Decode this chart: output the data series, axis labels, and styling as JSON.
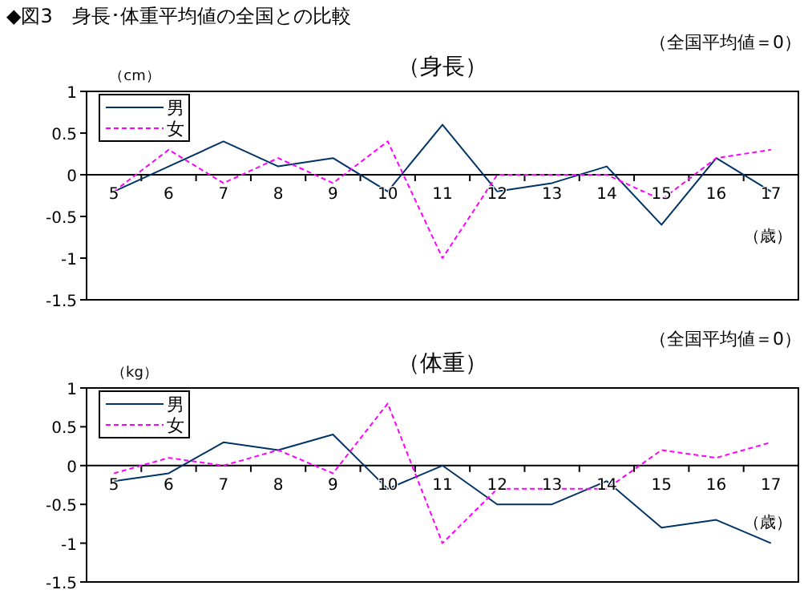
{
  "chart_data": [
    {
      "type": "line",
      "title": "（身長）",
      "subtitle": "（全国平均値＝0）",
      "ylabel": "（cm）",
      "xlabel": "（歳）",
      "annotations": [
        "◆図3　身長･体重平均値の全国との比較"
      ],
      "categories": [
        "5",
        "6",
        "7",
        "8",
        "9",
        "10",
        "11",
        "12",
        "13",
        "14",
        "15",
        "16",
        "17"
      ],
      "series": [
        {
          "name": "男",
          "color": "#003366",
          "line_style": "solid",
          "values": [
            -0.2,
            0.1,
            0.4,
            0.1,
            0.2,
            -0.2,
            0.6,
            -0.2,
            -0.1,
            0.1,
            -0.6,
            0.2,
            -0.2
          ]
        },
        {
          "name": "女",
          "color": "#ff00ff",
          "line_style": "dashed",
          "values": [
            -0.2,
            0.3,
            -0.1,
            0.2,
            -0.1,
            0.4,
            -1.0,
            0,
            0,
            0,
            -0.3,
            0.2,
            0.3
          ]
        }
      ],
      "ylim": [
        -1.5,
        1
      ],
      "yticks": [
        -1.5,
        -1,
        -0.5,
        0,
        0.5,
        1
      ],
      "legend": "top left",
      "marker": "none",
      "grid": false
    },
    {
      "type": "line",
      "title": "（体重）",
      "subtitle": "（全国平均値＝0）",
      "ylabel": "（kg）",
      "xlabel": "（歳）",
      "categories": [
        "5",
        "6",
        "7",
        "8",
        "9",
        "10",
        "11",
        "12",
        "13",
        "14",
        "15",
        "16",
        "17"
      ],
      "series": [
        {
          "name": "男",
          "color": "#003366",
          "line_style": "solid",
          "values": [
            -0.2,
            -0.1,
            0.3,
            0.2,
            0.4,
            -0.3,
            0,
            -0.5,
            -0.5,
            -0.2,
            -0.8,
            -0.7,
            -1.0
          ]
        },
        {
          "name": "女",
          "color": "#ff00ff",
          "line_style": "dashed",
          "values": [
            -0.1,
            0.1,
            0,
            0.2,
            -0.1,
            0.8,
            -1.0,
            -0.3,
            -0.3,
            -0.3,
            0.2,
            0.1,
            0.3
          ]
        }
      ],
      "ylim": [
        -1.5,
        1
      ],
      "yticks": [
        -1.5,
        -1,
        -0.5,
        0,
        0.5,
        1
      ],
      "legend": "top left",
      "marker": "none",
      "grid": false
    }
  ]
}
